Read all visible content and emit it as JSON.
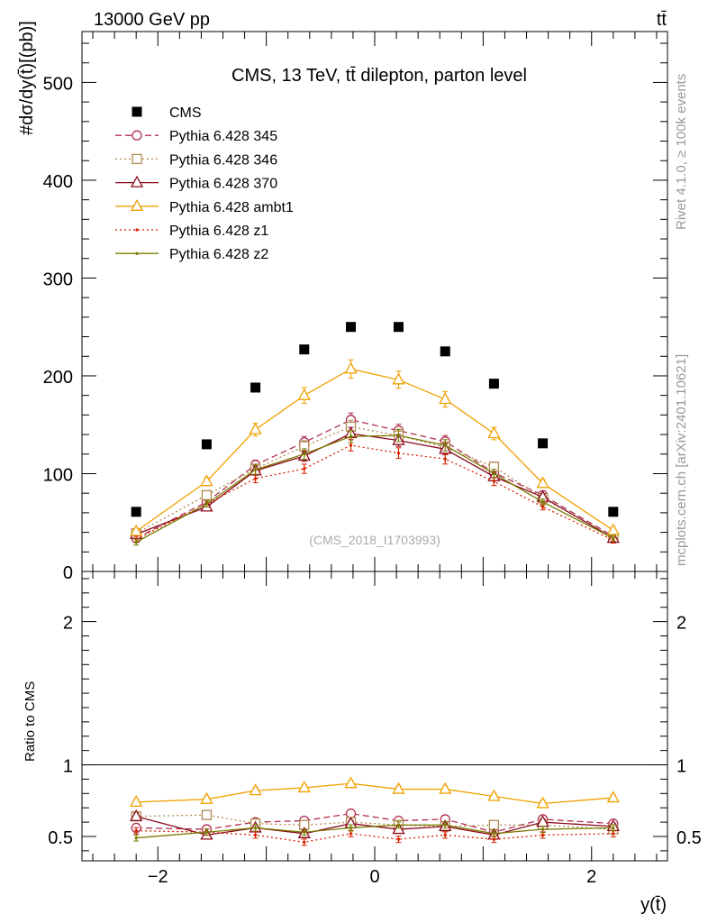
{
  "header": {
    "energy_label": "13000 GeV pp",
    "process_label": "tt̄"
  },
  "side": {
    "rivet_label": "Rivet 4.1.0, ≥ 100k events",
    "mcplots_label": "mcplots.cern.ch [arXiv:2401.10621]"
  },
  "colors": {
    "CMS": "#000000",
    "Pythia 6.428 345": "#b03050",
    "Pythia 6.428 346": "#b08850",
    "Pythia 6.428 370": "#8b0a1e",
    "Pythia 6.428 ambt1": "#f0a000",
    "Pythia 6.428 z1": "#d82000",
    "Pythia 6.428 z2": "#7b7b00"
  },
  "chart_data": [
    {
      "type": "scatter",
      "title": "CMS, 13 TeV, tt̄ dilepton, parton level",
      "watermark": "(CMS_2018_I1703993)",
      "ylabel": "#dσ/dy(t̄)[(pb)]",
      "xlim": [
        -2.7,
        2.7
      ],
      "ylim": [
        0,
        552
      ],
      "yticks": [
        0,
        100,
        200,
        300,
        400,
        500
      ],
      "x": [
        -2.2,
        -1.55,
        -1.1,
        -0.65,
        -0.22,
        0.22,
        0.65,
        1.1,
        1.55,
        2.2
      ],
      "series": [
        {
          "name": "CMS",
          "marker": "square",
          "line": "none",
          "values": [
            61,
            130,
            188,
            227,
            250,
            250,
            225,
            192,
            131,
            61
          ]
        },
        {
          "name": "Pythia 6.428 345",
          "marker": "circle",
          "line": "dashed",
          "values": [
            34,
            71,
            109,
            132,
            155,
            144,
            133,
            101,
            78,
            36
          ]
        },
        {
          "name": "Pythia 6.428 346",
          "marker": "square-open",
          "line": "dotted",
          "values": [
            39,
            78,
            105,
            128,
            148,
            139,
            127,
            107,
            75,
            35
          ]
        },
        {
          "name": "Pythia 6.428 370",
          "marker": "triangle",
          "line": "solid",
          "values": [
            38,
            66,
            103,
            118,
            141,
            134,
            125,
            97,
            76,
            34
          ]
        },
        {
          "name": "Pythia 6.428 ambt1",
          "marker": "triangle",
          "line": "solid",
          "values": [
            41,
            92,
            145,
            180,
            207,
            196,
            176,
            141,
            90,
            42
          ]
        },
        {
          "name": "Pythia 6.428 z1",
          "marker": "dot",
          "line": "dotted",
          "values": [
            33,
            69,
            95,
            105,
            129,
            121,
            115,
            92,
            66,
            32
          ]
        },
        {
          "name": "Pythia 6.428 z2",
          "marker": "dot",
          "line": "solid",
          "values": [
            30,
            69,
            104,
            120,
            138,
            139,
            129,
            100,
            71,
            34
          ]
        }
      ]
    },
    {
      "type": "line",
      "title": "",
      "ylabel": "Ratio to CMS",
      "xlabel": "y(t̄)",
      "xlim": [
        -2.7,
        2.7
      ],
      "ylim": [
        0.33,
        2.35
      ],
      "yticks": [
        0.5,
        1,
        2
      ],
      "xticks": [
        -2,
        0,
        2
      ],
      "x": [
        -2.2,
        -1.55,
        -1.1,
        -0.65,
        -0.22,
        0.22,
        0.65,
        1.1,
        1.55,
        2.2
      ],
      "series": [
        {
          "name": "Pythia 6.428 345",
          "values": [
            0.56,
            0.55,
            0.6,
            0.61,
            0.66,
            0.61,
            0.62,
            0.53,
            0.62,
            0.59
          ]
        },
        {
          "name": "Pythia 6.428 346",
          "values": [
            0.64,
            0.65,
            0.59,
            0.58,
            0.6,
            0.58,
            0.57,
            0.58,
            0.58,
            0.55
          ]
        },
        {
          "name": "Pythia 6.428 370",
          "values": [
            0.64,
            0.51,
            0.56,
            0.52,
            0.59,
            0.55,
            0.57,
            0.51,
            0.6,
            0.57
          ]
        },
        {
          "name": "Pythia 6.428 ambt1",
          "values": [
            0.74,
            0.76,
            0.82,
            0.84,
            0.87,
            0.83,
            0.83,
            0.78,
            0.73,
            0.77
          ]
        },
        {
          "name": "Pythia 6.428 z1",
          "values": [
            0.54,
            0.53,
            0.51,
            0.46,
            0.52,
            0.48,
            0.51,
            0.48,
            0.51,
            0.52
          ]
        },
        {
          "name": "Pythia 6.428 z2",
          "values": [
            0.49,
            0.53,
            0.56,
            0.53,
            0.56,
            0.58,
            0.58,
            0.52,
            0.55,
            0.56
          ]
        }
      ]
    }
  ]
}
